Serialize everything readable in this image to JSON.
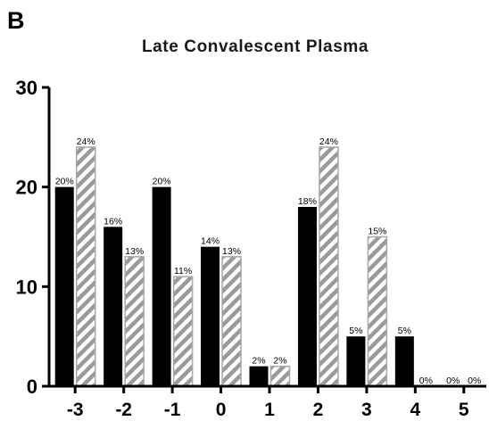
{
  "panel_label": "B",
  "chart_data": {
    "type": "bar",
    "title": "Late Convalescent Plasma",
    "xlabel": "",
    "ylabel": "",
    "ylim": [
      0,
      30
    ],
    "yticks": [
      "0",
      "10",
      "20",
      "30"
    ],
    "categories": [
      "-3",
      "-2",
      "-1",
      "0",
      "1",
      "2",
      "3",
      "4",
      "5"
    ],
    "series": [
      {
        "style": "solid",
        "color": "#000000",
        "values": [
          20,
          16,
          20,
          14,
          2,
          18,
          5,
          5,
          0
        ],
        "labels": [
          "20%",
          "16%",
          "20%",
          "14%",
          "2%",
          "18%",
          "5%",
          "5%",
          "0%"
        ]
      },
      {
        "style": "hatched",
        "color": "#9a9a9a",
        "values": [
          24,
          13,
          11,
          13,
          2,
          24,
          15,
          0,
          0
        ],
        "labels": [
          "24%",
          "13%",
          "11%",
          "13%",
          "2%",
          "24%",
          "15%",
          "0%",
          "0%"
        ]
      }
    ],
    "grid": false,
    "legend": "none"
  }
}
